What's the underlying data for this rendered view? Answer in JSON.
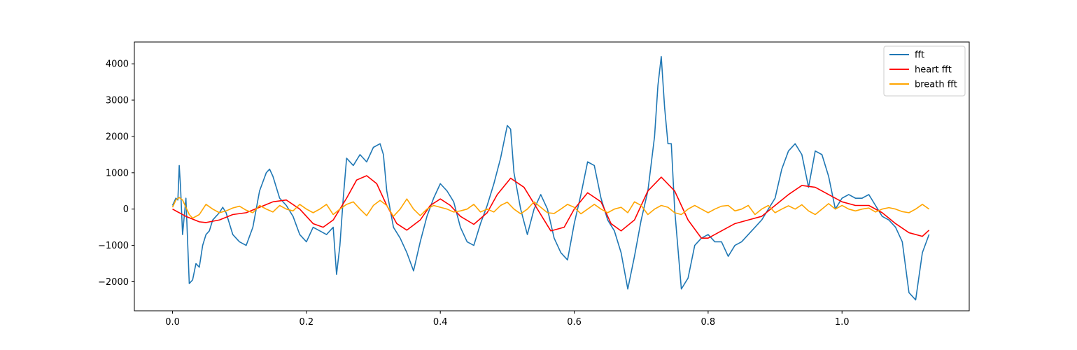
{
  "chart_data": {
    "type": "line",
    "title": "",
    "xlabel": "",
    "ylabel": "",
    "xlim": [
      -0.057,
      1.19
    ],
    "ylim": [
      -2800,
      4600
    ],
    "xticks": [
      0.0,
      0.2,
      0.4,
      0.6,
      0.8,
      1.0
    ],
    "xtick_labels": [
      "0.0",
      "0.2",
      "0.4",
      "0.6",
      "0.8",
      "1.0"
    ],
    "yticks": [
      -2000,
      -1000,
      0,
      1000,
      2000,
      3000,
      4000
    ],
    "ytick_labels": [
      "−2000",
      "−1000",
      "0",
      "1000",
      "2000",
      "3000",
      "4000"
    ],
    "grid": false,
    "legend_position": "upper right",
    "series": [
      {
        "name": "fft",
        "color": "#1f77b4",
        "x": [
          0.0,
          0.005,
          0.008,
          0.01,
          0.012,
          0.015,
          0.02,
          0.025,
          0.03,
          0.035,
          0.04,
          0.045,
          0.05,
          0.055,
          0.06,
          0.065,
          0.07,
          0.075,
          0.08,
          0.09,
          0.1,
          0.11,
          0.12,
          0.13,
          0.14,
          0.145,
          0.15,
          0.16,
          0.17,
          0.18,
          0.19,
          0.2,
          0.21,
          0.22,
          0.23,
          0.24,
          0.245,
          0.25,
          0.255,
          0.26,
          0.27,
          0.28,
          0.29,
          0.3,
          0.31,
          0.315,
          0.32,
          0.33,
          0.34,
          0.35,
          0.36,
          0.37,
          0.38,
          0.39,
          0.4,
          0.41,
          0.42,
          0.43,
          0.44,
          0.45,
          0.46,
          0.47,
          0.48,
          0.49,
          0.5,
          0.505,
          0.51,
          0.52,
          0.53,
          0.54,
          0.55,
          0.56,
          0.57,
          0.58,
          0.59,
          0.6,
          0.61,
          0.62,
          0.63,
          0.64,
          0.65,
          0.66,
          0.67,
          0.68,
          0.69,
          0.7,
          0.71,
          0.72,
          0.725,
          0.73,
          0.735,
          0.74,
          0.745,
          0.75,
          0.76,
          0.77,
          0.78,
          0.79,
          0.8,
          0.81,
          0.82,
          0.83,
          0.84,
          0.85,
          0.86,
          0.87,
          0.88,
          0.89,
          0.9,
          0.91,
          0.92,
          0.93,
          0.94,
          0.95,
          0.96,
          0.97,
          0.98,
          0.99,
          1.0,
          1.01,
          1.02,
          1.03,
          1.04,
          1.05,
          1.06,
          1.07,
          1.08,
          1.09,
          1.1,
          1.11,
          1.12,
          1.13
        ],
        "values": [
          100,
          300,
          250,
          1200,
          600,
          -700,
          300,
          -2050,
          -1950,
          -1500,
          -1600,
          -1000,
          -700,
          -600,
          -300,
          -200,
          -100,
          50,
          -100,
          -700,
          -900,
          -1000,
          -500,
          500,
          1000,
          1100,
          900,
          300,
          100,
          -200,
          -700,
          -900,
          -500,
          -600,
          -700,
          -500,
          -1800,
          -1000,
          300,
          1400,
          1200,
          1500,
          1300,
          1700,
          1800,
          1500,
          500,
          -500,
          -800,
          -1200,
          -1700,
          -900,
          -200,
          300,
          700,
          500,
          200,
          -500,
          -900,
          -1000,
          -400,
          100,
          700,
          1400,
          2300,
          2200,
          1000,
          0,
          -700,
          0,
          400,
          0,
          -800,
          -1200,
          -1400,
          -400,
          400,
          1300,
          1200,
          300,
          -300,
          -600,
          -1200,
          -2200,
          -1300,
          -300,
          500,
          2000,
          3400,
          4200,
          2800,
          1800,
          1800,
          0,
          -2200,
          -1900,
          -1000,
          -800,
          -700,
          -900,
          -900,
          -1300,
          -1000,
          -900,
          -700,
          -500,
          -300,
          0,
          300,
          1100,
          1600,
          1800,
          1500,
          600,
          1600,
          1500,
          900,
          0,
          300,
          400,
          300,
          300,
          400,
          100,
          -200,
          -300,
          -500,
          -900,
          -2300,
          -2500,
          -1200,
          -700
        ]
      },
      {
        "name": "heart fft",
        "color": "#ff0000",
        "x": [
          0.0,
          0.02,
          0.04,
          0.05,
          0.07,
          0.09,
          0.11,
          0.13,
          0.15,
          0.17,
          0.19,
          0.21,
          0.225,
          0.24,
          0.26,
          0.275,
          0.29,
          0.305,
          0.32,
          0.335,
          0.35,
          0.37,
          0.385,
          0.4,
          0.415,
          0.43,
          0.45,
          0.47,
          0.485,
          0.505,
          0.525,
          0.545,
          0.565,
          0.585,
          0.6,
          0.62,
          0.64,
          0.655,
          0.67,
          0.69,
          0.71,
          0.73,
          0.75,
          0.77,
          0.79,
          0.8,
          0.82,
          0.84,
          0.86,
          0.88,
          0.9,
          0.92,
          0.94,
          0.96,
          0.98,
          1.0,
          1.02,
          1.04,
          1.06,
          1.08,
          1.1,
          1.12,
          1.13
        ],
        "values": [
          0,
          -200,
          -350,
          -370,
          -300,
          -150,
          -100,
          50,
          200,
          250,
          0,
          -400,
          -500,
          -300,
          300,
          800,
          920,
          700,
          100,
          -400,
          -580,
          -300,
          100,
          280,
          100,
          -200,
          -420,
          -100,
          400,
          850,
          600,
          0,
          -600,
          -500,
          0,
          450,
          200,
          -400,
          -600,
          -300,
          500,
          880,
          500,
          -300,
          -800,
          -800,
          -600,
          -400,
          -300,
          -200,
          100,
          400,
          650,
          600,
          400,
          200,
          100,
          100,
          -100,
          -400,
          -650,
          -750,
          -580
        ]
      },
      {
        "name": "breath fft",
        "color": "#ffa500",
        "x": [
          0.0,
          0.005,
          0.01,
          0.015,
          0.02,
          0.025,
          0.03,
          0.04,
          0.05,
          0.06,
          0.07,
          0.08,
          0.09,
          0.1,
          0.11,
          0.12,
          0.13,
          0.14,
          0.15,
          0.16,
          0.17,
          0.18,
          0.19,
          0.2,
          0.21,
          0.22,
          0.23,
          0.24,
          0.25,
          0.26,
          0.27,
          0.28,
          0.29,
          0.3,
          0.31,
          0.32,
          0.33,
          0.34,
          0.35,
          0.36,
          0.37,
          0.38,
          0.39,
          0.4,
          0.41,
          0.42,
          0.43,
          0.44,
          0.45,
          0.46,
          0.47,
          0.48,
          0.49,
          0.5,
          0.51,
          0.52,
          0.53,
          0.54,
          0.55,
          0.56,
          0.57,
          0.58,
          0.59,
          0.6,
          0.61,
          0.62,
          0.63,
          0.64,
          0.65,
          0.66,
          0.67,
          0.68,
          0.69,
          0.7,
          0.71,
          0.72,
          0.73,
          0.74,
          0.75,
          0.76,
          0.77,
          0.78,
          0.79,
          0.8,
          0.81,
          0.82,
          0.83,
          0.84,
          0.85,
          0.86,
          0.87,
          0.88,
          0.89,
          0.9,
          0.91,
          0.92,
          0.93,
          0.94,
          0.95,
          0.96,
          0.97,
          0.98,
          0.99,
          1.0,
          1.01,
          1.02,
          1.03,
          1.04,
          1.05,
          1.06,
          1.07,
          1.08,
          1.09,
          1.1,
          1.11,
          1.12,
          1.13
        ],
        "values": [
          50,
          250,
          320,
          250,
          50,
          -150,
          -250,
          -150,
          130,
          0,
          -100,
          -50,
          30,
          80,
          -30,
          -100,
          100,
          0,
          -80,
          100,
          0,
          -50,
          130,
          0,
          -100,
          0,
          130,
          -150,
          0,
          130,
          200,
          0,
          -180,
          100,
          240,
          100,
          -200,
          0,
          280,
          0,
          -180,
          0,
          100,
          50,
          0,
          -80,
          -50,
          0,
          130,
          -80,
          0,
          -80,
          100,
          190,
          0,
          -130,
          0,
          200,
          50,
          -100,
          -120,
          0,
          130,
          50,
          -130,
          0,
          130,
          0,
          -100,
          0,
          50,
          -100,
          200,
          100,
          -150,
          0,
          100,
          50,
          -100,
          -150,
          0,
          100,
          0,
          -100,
          0,
          80,
          100,
          -50,
          0,
          100,
          -150,
          0,
          100,
          -100,
          0,
          90,
          0,
          120,
          -50,
          -150,
          0,
          150,
          0,
          100,
          0,
          -50,
          0,
          30,
          -80,
          0,
          40,
          0,
          -70,
          -100,
          0,
          130,
          0
        ]
      }
    ]
  }
}
